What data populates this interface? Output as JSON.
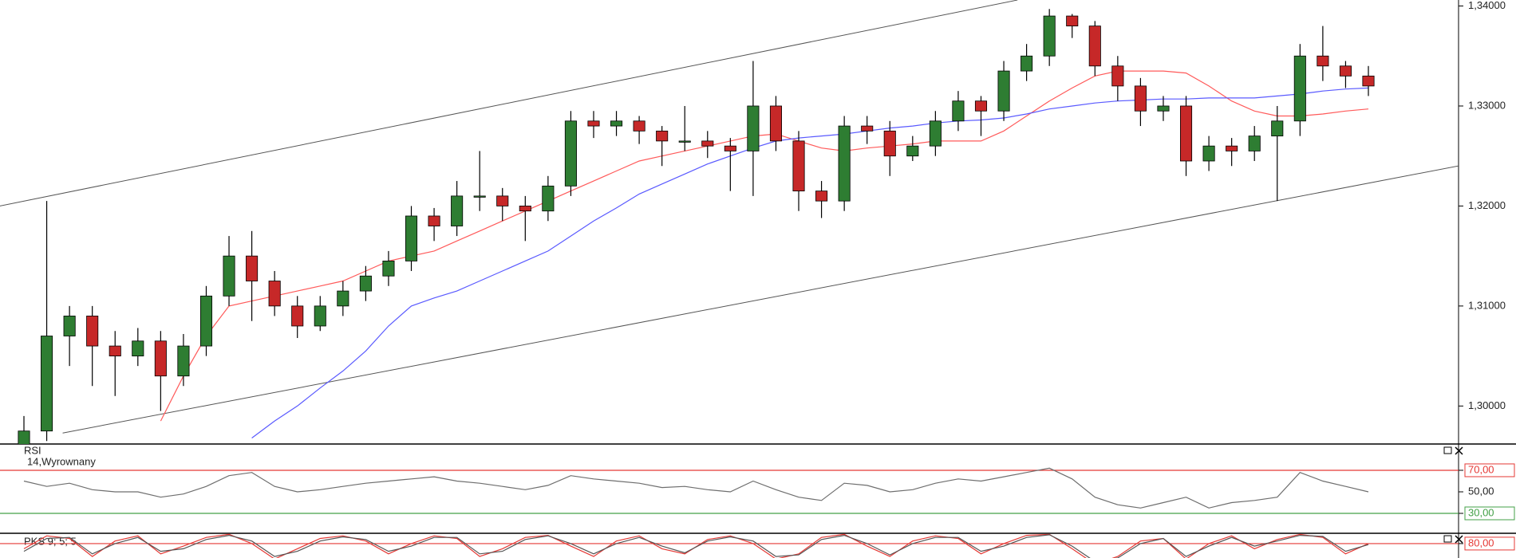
{
  "chart_data": [
    {
      "type": "candlestick",
      "open": [
        1.296,
        1.2975,
        1.307,
        1.309,
        1.306,
        1.305,
        1.3065,
        1.303,
        1.306,
        1.311,
        1.315,
        1.3125,
        1.31,
        1.308,
        1.31,
        1.3115,
        1.313,
        1.3145,
        1.319,
        1.318,
        1.321,
        1.321,
        1.32,
        1.3195,
        1.322,
        1.3285,
        1.328,
        1.3285,
        1.3275,
        1.3265,
        1.3265,
        1.326,
        1.3255,
        1.33,
        1.3265,
        1.3215,
        1.3205,
        1.328,
        1.3275,
        1.325,
        1.326,
        1.3285,
        1.3305,
        1.3295,
        1.3335,
        1.335,
        1.339,
        1.338,
        1.334,
        1.332,
        1.3295,
        1.33,
        1.3245,
        1.326,
        1.3255,
        1.327,
        1.3285,
        1.335,
        1.334,
        1.333
      ],
      "high": [
        1.299,
        1.3205,
        1.31,
        1.31,
        1.3075,
        1.3078,
        1.3075,
        1.3072,
        1.312,
        1.317,
        1.3175,
        1.3135,
        1.311,
        1.311,
        1.3125,
        1.314,
        1.3155,
        1.32,
        1.3198,
        1.3225,
        1.3255,
        1.3218,
        1.321,
        1.323,
        1.3295,
        1.3295,
        1.3295,
        1.329,
        1.328,
        1.33,
        1.3275,
        1.3268,
        1.3345,
        1.331,
        1.3275,
        1.3225,
        1.329,
        1.329,
        1.3285,
        1.327,
        1.3295,
        1.3315,
        1.331,
        1.3345,
        1.3362,
        1.3397,
        1.3392,
        1.3385,
        1.335,
        1.3328,
        1.331,
        1.331,
        1.327,
        1.3268,
        1.328,
        1.33,
        1.3362,
        1.338,
        1.3345,
        1.334
      ],
      "low": [
        1.295,
        1.2965,
        1.304,
        1.302,
        1.301,
        1.304,
        1.2995,
        1.302,
        1.305,
        1.31,
        1.3085,
        1.309,
        1.3068,
        1.3075,
        1.309,
        1.3105,
        1.312,
        1.3135,
        1.3165,
        1.317,
        1.3195,
        1.3185,
        1.3165,
        1.3185,
        1.321,
        1.3268,
        1.327,
        1.3262,
        1.324,
        1.3255,
        1.3248,
        1.3215,
        1.321,
        1.3255,
        1.3195,
        1.3188,
        1.3195,
        1.3262,
        1.323,
        1.3245,
        1.325,
        1.3275,
        1.327,
        1.3285,
        1.3325,
        1.334,
        1.3368,
        1.333,
        1.3305,
        1.328,
        1.3285,
        1.323,
        1.3235,
        1.324,
        1.3245,
        1.3205,
        1.327,
        1.3325,
        1.3318,
        1.331
      ],
      "close": [
        1.2975,
        1.307,
        1.309,
        1.306,
        1.305,
        1.3065,
        1.303,
        1.306,
        1.311,
        1.315,
        1.3125,
        1.31,
        1.308,
        1.31,
        1.3115,
        1.313,
        1.3145,
        1.319,
        1.318,
        1.321,
        1.321,
        1.32,
        1.3195,
        1.322,
        1.3285,
        1.328,
        1.3285,
        1.3275,
        1.3265,
        1.3265,
        1.326,
        1.3255,
        1.33,
        1.3265,
        1.3215,
        1.3205,
        1.328,
        1.3275,
        1.325,
        1.326,
        1.3285,
        1.3305,
        1.3295,
        1.3335,
        1.335,
        1.339,
        1.338,
        1.334,
        1.332,
        1.3295,
        1.33,
        1.3245,
        1.326,
        1.3255,
        1.327,
        1.3285,
        1.335,
        1.334,
        1.333,
        1.332
      ],
      "colors": {
        "up": "#2e7d32",
        "down": "#c62828"
      },
      "lines": [
        {
          "color": "#ff5a5a",
          "values": [
            null,
            null,
            null,
            null,
            null,
            null,
            1.2985,
            1.303,
            1.307,
            1.31,
            1.3105,
            1.311,
            1.3115,
            1.312,
            1.3125,
            1.3135,
            1.3145,
            1.315,
            1.3155,
            1.3165,
            1.3175,
            1.3185,
            1.3195,
            1.3205,
            1.3215,
            1.3225,
            1.3235,
            1.3245,
            1.325,
            1.3255,
            1.326,
            1.3265,
            1.327,
            1.3272,
            1.3265,
            1.3258,
            1.3255,
            1.3258,
            1.326,
            1.3262,
            1.3265,
            1.3265,
            1.3265,
            1.3275,
            1.329,
            1.3305,
            1.3318,
            1.333,
            1.3335,
            1.3335,
            1.3335,
            1.3333,
            1.332,
            1.3305,
            1.3295,
            1.329,
            1.329,
            1.3292,
            1.3295,
            1.3297
          ]
        },
        {
          "color": "#5a5aff",
          "values": [
            null,
            null,
            null,
            null,
            null,
            null,
            null,
            null,
            null,
            null,
            1.2968,
            1.2985,
            1.3,
            1.3018,
            1.3035,
            1.3055,
            1.308,
            1.31,
            1.3108,
            1.3115,
            1.3125,
            1.3135,
            1.3145,
            1.3155,
            1.317,
            1.3185,
            1.3198,
            1.3212,
            1.3222,
            1.3232,
            1.3242,
            1.325,
            1.3258,
            1.3265,
            1.3268,
            1.327,
            1.3272,
            1.3275,
            1.3278,
            1.328,
            1.3283,
            1.3285,
            1.3286,
            1.3288,
            1.3292,
            1.3297,
            1.33,
            1.3303,
            1.3305,
            1.3306,
            1.3307,
            1.3307,
            1.3308,
            1.3308,
            1.3308,
            1.331,
            1.3312,
            1.3315,
            1.3317,
            1.3318
          ]
        }
      ],
      "trendlines": [
        {
          "color": "#555555",
          "x": [
            -1.06,
            43.6
          ],
          "y": [
            1.32,
            1.3406
          ]
        },
        {
          "color": "#555555",
          "x": [
            1.7,
            63.4
          ],
          "y": [
            1.2973,
            1.3242
          ]
        }
      ],
      "ylim": [
        1.2962,
        1.3406
      ],
      "yticks": [
        {
          "value": 1.3,
          "label": "1,30000"
        },
        {
          "value": 1.31,
          "label": "1,31000"
        },
        {
          "value": 1.32,
          "label": "1,32000"
        },
        {
          "value": 1.33,
          "label": "1,33000"
        },
        {
          "value": 1.34,
          "label": "1,34000"
        }
      ]
    },
    {
      "type": "line",
      "title": "RSI",
      "subtitle": "14,Wyrownany",
      "series": [
        {
          "color": "#6e6e6e",
          "values": [
            60,
            55,
            58,
            52,
            50,
            50,
            45,
            48,
            55,
            65,
            68,
            55,
            50,
            52,
            55,
            58,
            60,
            62,
            64,
            60,
            58,
            55,
            52,
            56,
            65,
            62,
            60,
            58,
            54,
            55,
            52,
            50,
            60,
            52,
            45,
            42,
            58,
            56,
            50,
            52,
            58,
            62,
            60,
            64,
            68,
            72,
            62,
            45,
            38,
            35,
            40,
            45,
            35,
            40,
            42,
            45,
            68,
            60,
            55,
            50
          ]
        }
      ],
      "levels": [
        {
          "value": 70,
          "color": "#e53935"
        },
        {
          "value": 30,
          "color": "#43a047"
        }
      ],
      "ylim": [
        11.5,
        94.4
      ],
      "yticks": [
        {
          "value": 70,
          "label": "70,00"
        },
        {
          "value": 50,
          "label": "50,00"
        },
        {
          "value": 30,
          "label": "30,00"
        }
      ]
    },
    {
      "type": "line",
      "title": "PKS 9; 5; 5",
      "series": [
        {
          "color": "#e53935",
          "values": [
            70,
            95,
            90,
            55,
            85,
            95,
            60,
            75,
            92,
            98,
            80,
            50,
            70,
            90,
            95,
            85,
            60,
            80,
            95,
            90,
            55,
            70,
            92,
            96,
            75,
            55,
            85,
            95,
            70,
            60,
            88,
            95,
            80,
            50,
            60,
            92,
            98,
            75,
            55,
            85,
            95,
            90,
            60,
            80,
            96,
            98,
            70,
            40,
            55,
            85,
            90,
            50,
            80,
            95,
            70,
            88,
            98,
            92,
            60,
            80
          ]
        },
        {
          "color": "#555555",
          "values": [
            65,
            90,
            92,
            60,
            80,
            92,
            65,
            70,
            88,
            96,
            85,
            55,
            65,
            85,
            93,
            88,
            65,
            75,
            92,
            92,
            60,
            65,
            88,
            95,
            80,
            60,
            80,
            92,
            75,
            62,
            85,
            93,
            85,
            55,
            58,
            88,
            96,
            80,
            58,
            80,
            92,
            92,
            65,
            75,
            92,
            97,
            75,
            45,
            52,
            80,
            90,
            55,
            75,
            92,
            75,
            85,
            96,
            94,
            65,
            78
          ]
        }
      ],
      "levels": [
        {
          "value": 80,
          "color": "#e53935"
        }
      ],
      "ylim": [
        52,
        100
      ],
      "yticks": [
        {
          "value": 80,
          "label": "80,00"
        }
      ]
    }
  ]
}
